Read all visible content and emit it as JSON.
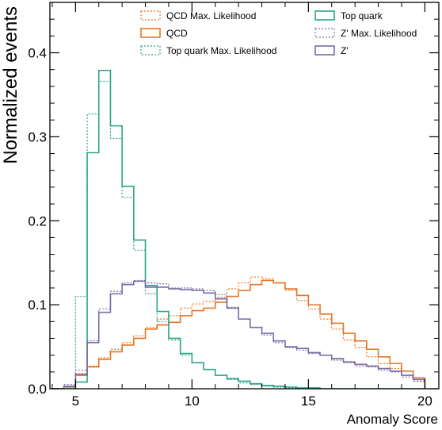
{
  "chart_data": {
    "type": "histogram",
    "xlabel": "Anomaly Score",
    "ylabel": "Normalized events",
    "xlim": [
      3.9,
      20.6
    ],
    "ylim": [
      0,
      0.46
    ],
    "xticks": [
      5,
      10,
      15,
      20
    ],
    "yticks": [
      0.0,
      0.1,
      0.2,
      0.3,
      0.4
    ],
    "grid": false,
    "legend_position": "top-right",
    "bin_edges": [
      4.0,
      4.5,
      5.0,
      5.5,
      6.0,
      6.5,
      7.0,
      7.5,
      8.0,
      8.5,
      9.0,
      9.5,
      10.0,
      10.5,
      11.0,
      11.5,
      12.0,
      12.5,
      13.0,
      13.5,
      14.0,
      14.5,
      15.0,
      15.5,
      16.0,
      16.5,
      17.0,
      17.5,
      18.0,
      18.5,
      19.0,
      19.5,
      20.0
    ],
    "series": [
      {
        "name": "QCD Max. Likelihood",
        "color": "#e67422",
        "style": "dotted",
        "values": [
          0.0,
          0.003,
          0.018,
          0.027,
          0.037,
          0.047,
          0.055,
          0.063,
          0.073,
          0.083,
          0.087,
          0.096,
          0.101,
          0.104,
          0.109,
          0.119,
          0.126,
          0.133,
          0.131,
          0.126,
          0.117,
          0.105,
          0.095,
          0.083,
          0.071,
          0.058,
          0.049,
          0.038,
          0.03,
          0.024,
          0.016,
          0.009
        ]
      },
      {
        "name": "QCD",
        "color": "#e67422",
        "style": "solid",
        "values": [
          0.0,
          0.002,
          0.016,
          0.026,
          0.035,
          0.044,
          0.052,
          0.06,
          0.071,
          0.076,
          0.079,
          0.087,
          0.093,
          0.096,
          0.103,
          0.11,
          0.117,
          0.124,
          0.129,
          0.126,
          0.119,
          0.111,
          0.1,
          0.089,
          0.078,
          0.066,
          0.057,
          0.047,
          0.038,
          0.03,
          0.021,
          0.013
        ]
      },
      {
        "name": "Top quark Max. Likelihood",
        "color": "#2aa586",
        "style": "dotted",
        "values": [
          0.0,
          0.002,
          0.11,
          0.327,
          0.366,
          0.298,
          0.228,
          0.165,
          0.113,
          0.08,
          0.058,
          0.04,
          0.031,
          0.023,
          0.016,
          0.011,
          0.007,
          0.005,
          0.003,
          0.002,
          0.001,
          0.001,
          0.0,
          0.0,
          0.0,
          0.0,
          0.0,
          0.0,
          0.0,
          0.0,
          0.0,
          0.0
        ]
      },
      {
        "name": "Top quark",
        "color": "#2aa586",
        "style": "solid",
        "values": [
          0.0,
          0.0,
          0.008,
          0.281,
          0.379,
          0.313,
          0.241,
          0.177,
          0.123,
          0.092,
          0.06,
          0.042,
          0.031,
          0.023,
          0.016,
          0.012,
          0.009,
          0.006,
          0.004,
          0.003,
          0.002,
          0.001,
          0.001,
          0.0,
          0.0,
          0.0,
          0.0,
          0.0,
          0.0,
          0.0,
          0.0,
          0.0
        ]
      },
      {
        "name": "Z' Max. Likelihood",
        "color": "#7b69a8",
        "style": "dotted",
        "values": [
          0.0,
          0.005,
          0.022,
          0.057,
          0.095,
          0.116,
          0.126,
          0.129,
          0.126,
          0.125,
          0.12,
          0.12,
          0.119,
          0.117,
          0.112,
          0.097,
          0.083,
          0.073,
          0.064,
          0.055,
          0.049,
          0.046,
          0.042,
          0.04,
          0.034,
          0.031,
          0.027,
          0.026,
          0.022,
          0.02,
          0.014,
          0.009
        ]
      },
      {
        "name": "Z'",
        "color": "#7b69a8",
        "style": "solid",
        "values": [
          0.0,
          0.003,
          0.017,
          0.055,
          0.091,
          0.113,
          0.124,
          0.128,
          0.121,
          0.121,
          0.119,
          0.118,
          0.117,
          0.114,
          0.107,
          0.096,
          0.083,
          0.073,
          0.066,
          0.057,
          0.05,
          0.048,
          0.043,
          0.04,
          0.036,
          0.032,
          0.029,
          0.027,
          0.024,
          0.021,
          0.016,
          0.011
        ]
      }
    ],
    "legend_order": [
      0,
      3,
      1,
      4,
      2,
      5
    ]
  }
}
